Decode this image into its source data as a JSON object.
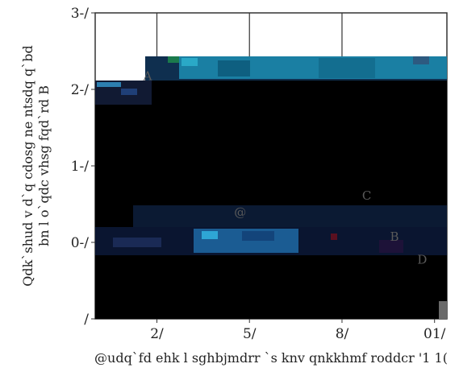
{
  "chart_data": {
    "type": "heatmap",
    "title": "",
    "xlabel": "@udq`fd ehk l sghbjmdrr `s knv qnkkhmf roddcr '1 1(",
    "ylabel_lines": [
      "Qdk`shud v d`q cdosg ne ntsdq q`bd",
      "bn l o`qdc vhsg fqd`rd B"
    ],
    "x_ticks": [
      "2/",
      "5/",
      "8/",
      "01/"
    ],
    "x_tick_values": [
      30,
      60,
      90,
      120
    ],
    "xlim": [
      10,
      124
    ],
    "y_ticks": [
      "/",
      "0-/",
      "1-/",
      "2-/",
      "3-/"
    ],
    "y_tick_values": [
      0,
      1,
      2,
      3,
      4
    ],
    "ylim": [
      0,
      4
    ],
    "grid": true,
    "annotations": [
      {
        "text": "A",
        "x": 27,
        "y": 3.12
      },
      {
        "text": "@",
        "x": 57,
        "y": 1.34
      },
      {
        "text": "C",
        "x": 98,
        "y": 1.56
      },
      {
        "text": "B",
        "x": 107,
        "y": 1.02
      },
      {
        "text": "D",
        "x": 116,
        "y": 0.72
      }
    ],
    "colors": {
      "background_fill": "#000000",
      "band_teal": "#1a7fa3",
      "band_blue": "#143f7a",
      "frame": "#333333"
    }
  }
}
